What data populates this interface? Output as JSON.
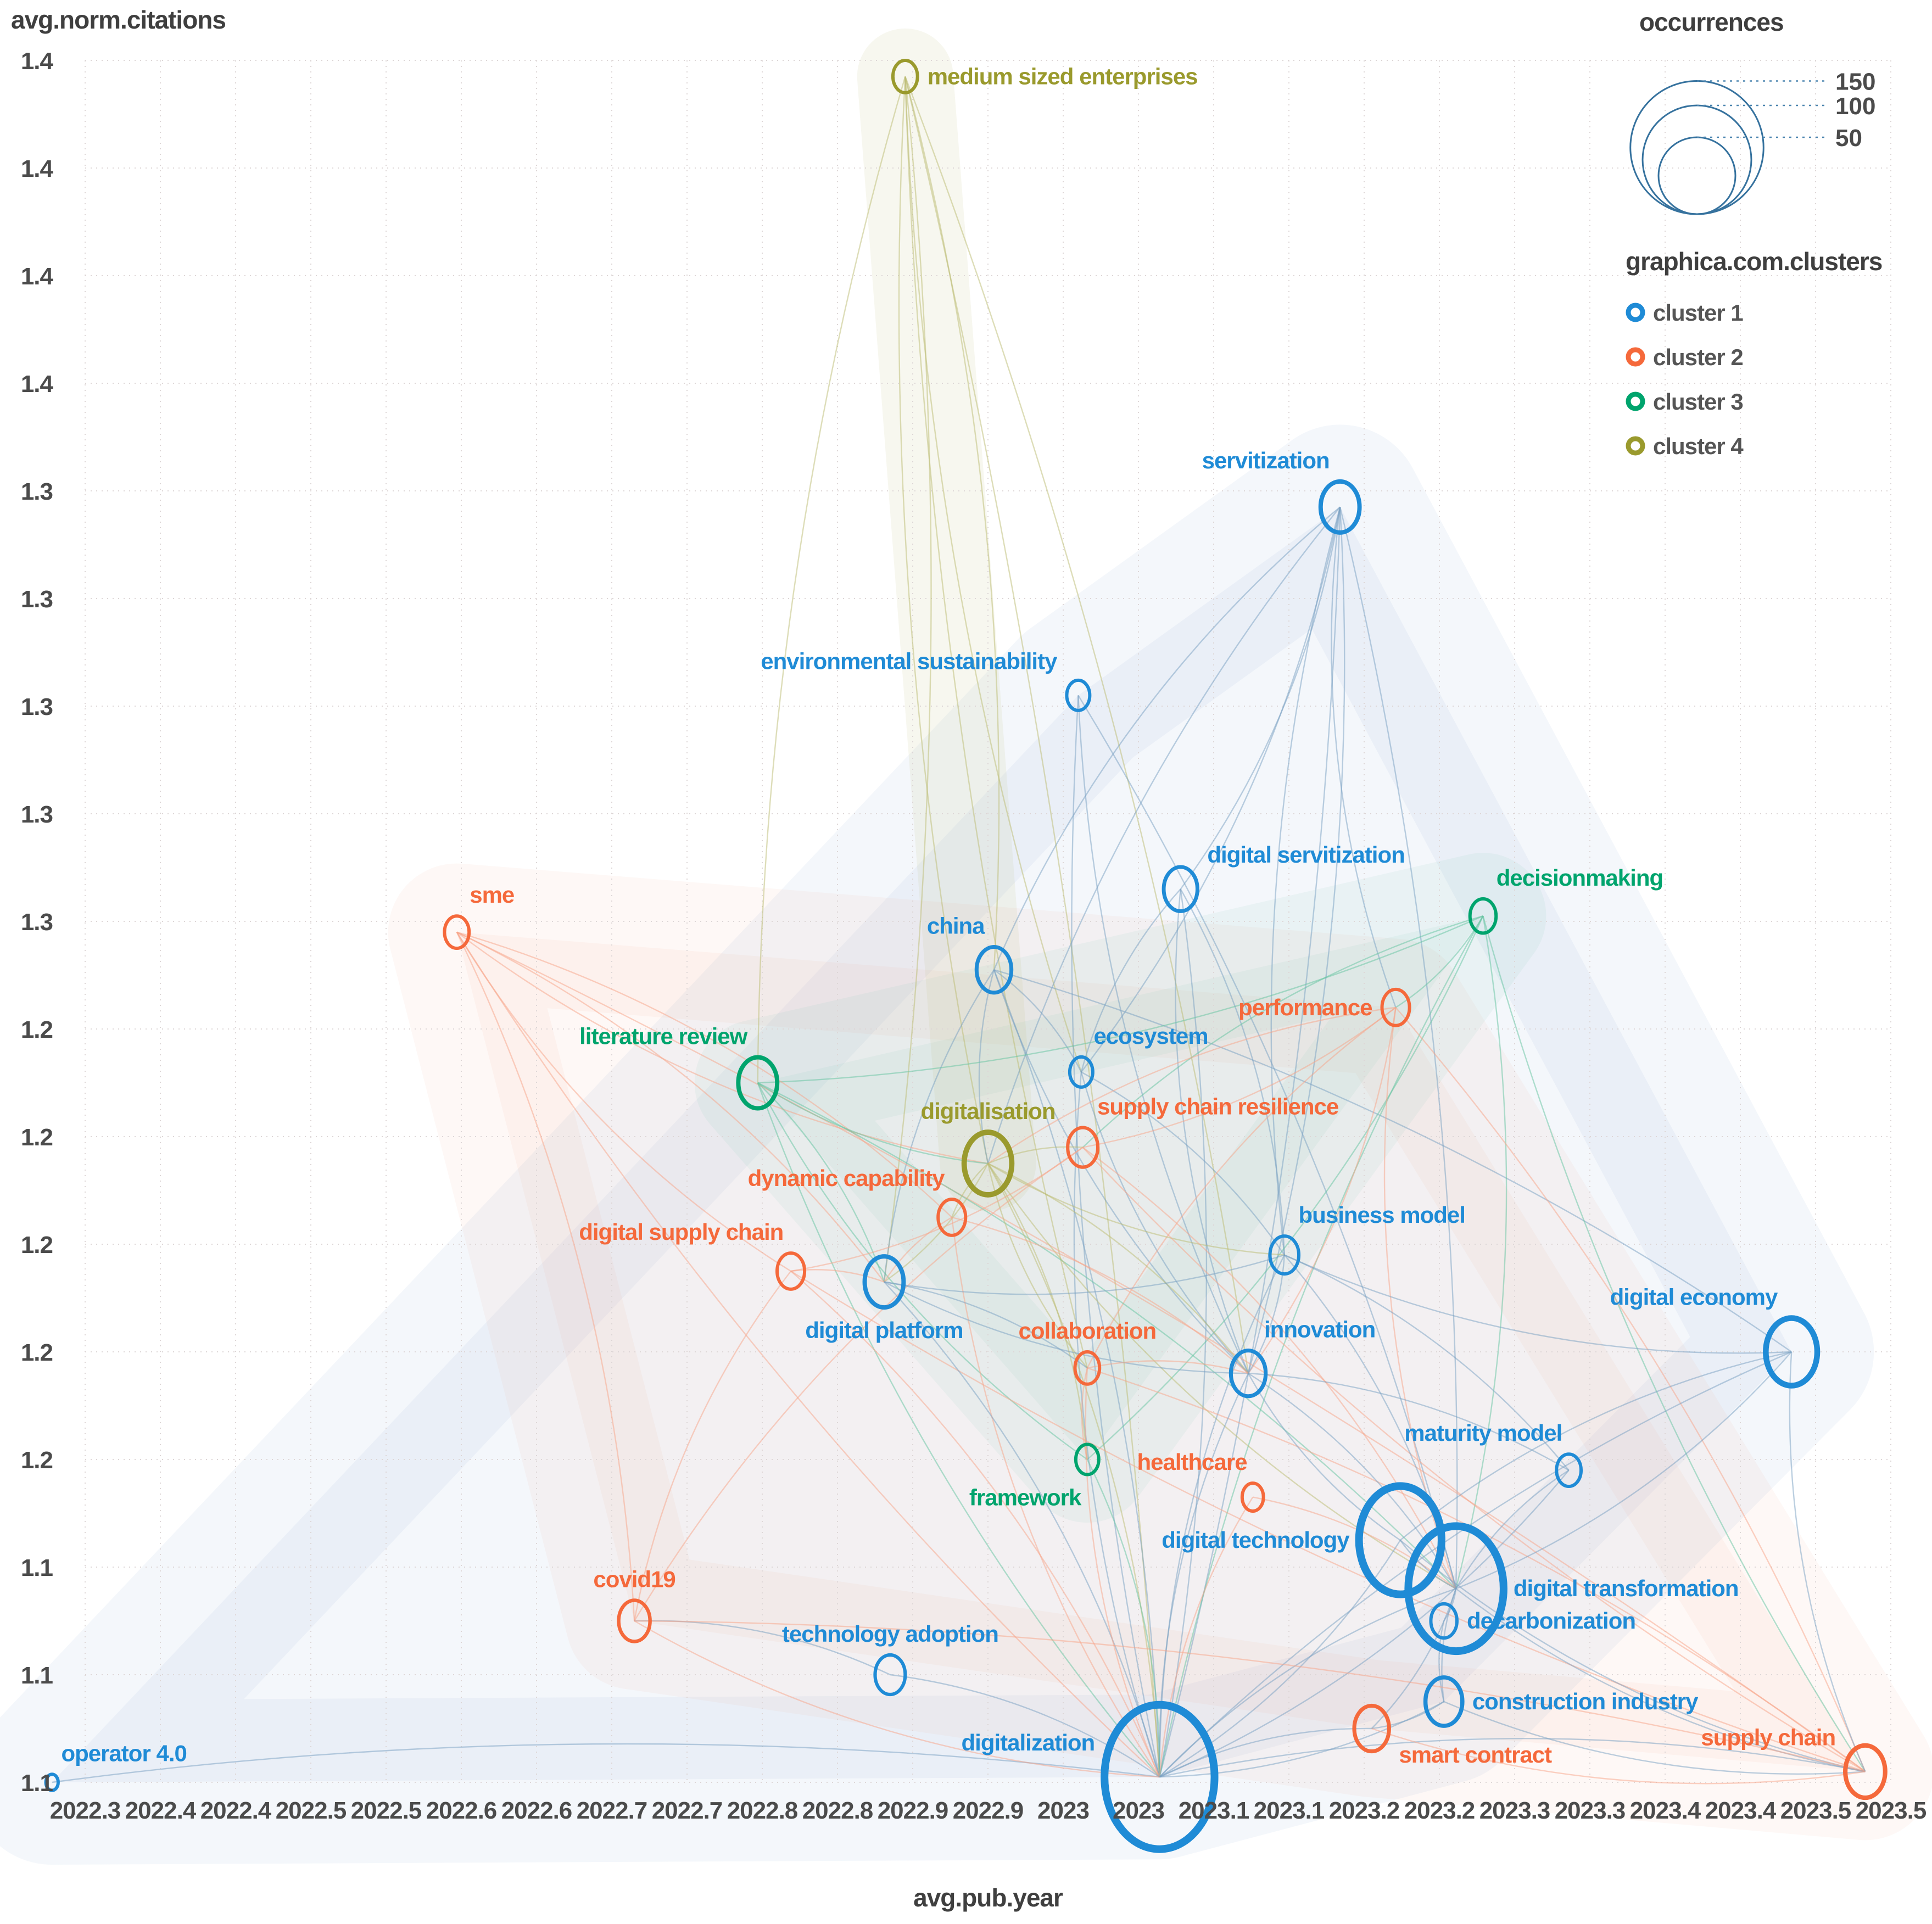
{
  "titles": {
    "y": "avg.norm.citations",
    "x": "avg.pub.year"
  },
  "axes": {
    "x_ticks": [
      "2022.3",
      "2022.4",
      "2022.4",
      "2022.5",
      "2022.5",
      "2022.6",
      "2022.6",
      "2022.7",
      "2022.7",
      "2022.8",
      "2022.8",
      "2022.9",
      "2022.9",
      "2023",
      "2023",
      "2023.1",
      "2023.1",
      "2023.2",
      "2023.2",
      "2023.3",
      "2023.3",
      "2023.4",
      "2023.4",
      "2023.5",
      "2023.5"
    ],
    "y_ticks": [
      "1.4",
      "1.4",
      "1.4",
      "1.4",
      "1.3",
      "1.3",
      "1.3",
      "1.3",
      "1.3",
      "1.2",
      "1.2",
      "1.2",
      "1.2",
      "1.2",
      "1.1",
      "1.1",
      "1.1"
    ]
  },
  "legend_size": {
    "title": "occurrences",
    "values": [
      150,
      100,
      50
    ]
  },
  "legend_clusters": {
    "title": "graphica.com.clusters",
    "items": [
      {
        "label": "cluster 1",
        "color": "#1f8bd6"
      },
      {
        "label": "cluster 2",
        "color": "#f5693b"
      },
      {
        "label": "cluster 3",
        "color": "#00a46d"
      },
      {
        "label": "cluster 4",
        "color": "#9a9a2d"
      }
    ]
  },
  "chart_data": {
    "type": "bubble",
    "xlabel": "avg.pub.year",
    "ylabel": "avg.norm.citations",
    "x_range": [
      2022.3,
      2023.5
    ],
    "y_range": [
      1.1,
      1.42
    ],
    "size_legend": [
      50,
      100,
      150
    ],
    "clusters": {
      "1": {
        "color": "#1f8bd6",
        "edge": "#789fc2",
        "hull": "#7aa7d4"
      },
      "2": {
        "color": "#f5693b",
        "edge": "#f7a488",
        "hull": "#f5987a"
      },
      "3": {
        "color": "#00a46d",
        "edge": "#63c3a0",
        "hull": "#7cc8ad"
      },
      "4": {
        "color": "#9a9a2d",
        "edge": "#bcbb72",
        "hull": "#bcbc78"
      }
    },
    "nodes": [
      {
        "id": "mse",
        "label": "medium sized enterprises",
        "cluster": 4,
        "x": 2022.845,
        "y": 1.417,
        "occ": 8,
        "lp": "right"
      },
      {
        "id": "serv",
        "label": "servitization",
        "cluster": 1,
        "x": 2023.134,
        "y": 1.337,
        "occ": 20,
        "lp": "above-left"
      },
      {
        "id": "envs",
        "label": "environmental sustainability",
        "cluster": 1,
        "x": 2022.96,
        "y": 1.302,
        "occ": 7,
        "lp": "left-up"
      },
      {
        "id": "dserv",
        "label": "digital servitization",
        "cluster": 1,
        "x": 2023.028,
        "y": 1.266,
        "occ": 15,
        "lp": "right-up"
      },
      {
        "id": "china",
        "label": "china",
        "cluster": 1,
        "x": 2022.904,
        "y": 1.251,
        "occ": 16,
        "lp": "above-left"
      },
      {
        "id": "dmk",
        "label": "decisionmaking",
        "cluster": 3,
        "x": 2023.229,
        "y": 1.261,
        "occ": 9,
        "lp": "above-right"
      },
      {
        "id": "eco",
        "label": "ecosystem",
        "cluster": 1,
        "x": 2022.962,
        "y": 1.232,
        "occ": 7,
        "lp": "above-right"
      },
      {
        "id": "perf",
        "label": "performance",
        "cluster": 2,
        "x": 2023.171,
        "y": 1.244,
        "occ": 10,
        "lp": "left"
      },
      {
        "id": "sme",
        "label": "sme",
        "cluster": 2,
        "x": 2022.547,
        "y": 1.258,
        "occ": 8,
        "lp": "above-right"
      },
      {
        "id": "lit",
        "label": "literature review",
        "cluster": 3,
        "x": 2022.747,
        "y": 1.23,
        "occ": 20,
        "lp": "above-left"
      },
      {
        "id": "digsn",
        "label": "digitalisation",
        "cluster": 4,
        "x": 2022.9,
        "y": 1.215,
        "occ": 30,
        "lp": "above"
      },
      {
        "id": "scres",
        "label": "supply chain resilience",
        "cluster": 2,
        "x": 2022.963,
        "y": 1.218,
        "occ": 12,
        "lp": "above-right"
      },
      {
        "id": "dyn",
        "label": "dynamic capability",
        "cluster": 2,
        "x": 2022.876,
        "y": 1.205,
        "occ": 10,
        "lp": "above-left"
      },
      {
        "id": "dsch",
        "label": "digital supply chain",
        "cluster": 2,
        "x": 2022.769,
        "y": 1.195,
        "occ": 10,
        "lp": "above-left"
      },
      {
        "id": "dplat",
        "label": "digital platform",
        "cluster": 1,
        "x": 2022.831,
        "y": 1.193,
        "occ": 20,
        "lp": "below"
      },
      {
        "id": "bmod",
        "label": "business model",
        "cluster": 1,
        "x": 2023.097,
        "y": 1.198,
        "occ": 11,
        "lp": "above-right"
      },
      {
        "id": "coll",
        "label": "collaboration",
        "cluster": 2,
        "x": 2022.966,
        "y": 1.177,
        "occ": 8,
        "lp": "above"
      },
      {
        "id": "innov",
        "label": "innovation",
        "cluster": 1,
        "x": 2023.073,
        "y": 1.176,
        "occ": 16,
        "lp": "above-right"
      },
      {
        "id": "mat",
        "label": "maturity model",
        "cluster": 1,
        "x": 2023.286,
        "y": 1.158,
        "occ": 8,
        "lp": "above-left"
      },
      {
        "id": "deco",
        "label": "digital economy",
        "cluster": 1,
        "x": 2023.434,
        "y": 1.18,
        "occ": 35,
        "lp": "above-left"
      },
      {
        "id": "fw",
        "label": "framework",
        "cluster": 3,
        "x": 2022.966,
        "y": 1.16,
        "occ": 7,
        "lp": "below-left"
      },
      {
        "id": "hc",
        "label": "healthcare",
        "cluster": 2,
        "x": 2023.076,
        "y": 1.153,
        "occ": 6,
        "lp": "above-left"
      },
      {
        "id": "dtech",
        "label": "digital technology",
        "cluster": 1,
        "x": 2023.174,
        "y": 1.145,
        "occ": 90,
        "lp": "left"
      },
      {
        "id": "dtrans",
        "label": "digital transformation",
        "cluster": 1,
        "x": 2023.211,
        "y": 1.136,
        "occ": 120,
        "lp": "right"
      },
      {
        "id": "dcarb",
        "label": "decarbonization",
        "cluster": 1,
        "x": 2023.203,
        "y": 1.13,
        "occ": 9,
        "lp": "right"
      },
      {
        "id": "cons",
        "label": "construction industry",
        "cluster": 1,
        "x": 2023.203,
        "y": 1.115,
        "occ": 18,
        "lp": "right"
      },
      {
        "id": "tad",
        "label": "technology adoption",
        "cluster": 1,
        "x": 2022.835,
        "y": 1.12,
        "occ": 12,
        "lp": "above"
      },
      {
        "id": "dign",
        "label": "digitalization",
        "cluster": 1,
        "x": 2023.014,
        "y": 1.101,
        "occ": 160,
        "lp": "left-up"
      },
      {
        "id": "covid",
        "label": "covid19",
        "cluster": 2,
        "x": 2022.665,
        "y": 1.13,
        "occ": 13,
        "lp": "above"
      },
      {
        "id": "smart",
        "label": "smart contract",
        "cluster": 2,
        "x": 2023.155,
        "y": 1.11,
        "occ": 16,
        "lp": "right-down"
      },
      {
        "id": "op40",
        "label": "operator 4.0",
        "cluster": 1,
        "x": 2022.278,
        "y": 1.1,
        "occ": 2,
        "lp": "above-right"
      },
      {
        "id": "schain",
        "label": "supply chain",
        "cluster": 2,
        "x": 2023.483,
        "y": 1.102,
        "occ": 21,
        "lp": "left-up"
      }
    ],
    "edges": [
      [
        "mse",
        "china"
      ],
      [
        "mse",
        "digsn"
      ],
      [
        "mse",
        "dplat"
      ],
      [
        "mse",
        "eco"
      ],
      [
        "mse",
        "dign"
      ],
      [
        "mse",
        "coll"
      ],
      [
        "mse",
        "innov"
      ],
      [
        "mse",
        "lit"
      ],
      [
        "serv",
        "dserv"
      ],
      [
        "serv",
        "china"
      ],
      [
        "serv",
        "eco"
      ],
      [
        "serv",
        "bmod"
      ],
      [
        "serv",
        "innov"
      ],
      [
        "serv",
        "digsn"
      ],
      [
        "serv",
        "dign"
      ],
      [
        "serv",
        "perf"
      ],
      [
        "serv",
        "dtrans"
      ],
      [
        "envs",
        "dign"
      ],
      [
        "envs",
        "dtrans"
      ],
      [
        "envs",
        "innov"
      ],
      [
        "dserv",
        "bmod"
      ],
      [
        "dserv",
        "innov"
      ],
      [
        "dserv",
        "dign"
      ],
      [
        "dserv",
        "eco"
      ],
      [
        "china",
        "eco"
      ],
      [
        "china",
        "dplat"
      ],
      [
        "china",
        "dign"
      ],
      [
        "china",
        "innov"
      ],
      [
        "china",
        "deco"
      ],
      [
        "china",
        "digsn"
      ],
      [
        "dmk",
        "perf"
      ],
      [
        "dmk",
        "scres"
      ],
      [
        "dmk",
        "fw"
      ],
      [
        "dmk",
        "dign"
      ],
      [
        "dmk",
        "dtrans"
      ],
      [
        "dmk",
        "schain"
      ],
      [
        "dmk",
        "lit"
      ],
      [
        "eco",
        "innov"
      ],
      [
        "eco",
        "bmod"
      ],
      [
        "eco",
        "dign"
      ],
      [
        "perf",
        "scres"
      ],
      [
        "perf",
        "digsn"
      ],
      [
        "perf",
        "innov"
      ],
      [
        "perf",
        "dtrans"
      ],
      [
        "perf",
        "schain"
      ],
      [
        "perf",
        "coll"
      ],
      [
        "sme",
        "covid"
      ],
      [
        "sme",
        "dsch"
      ],
      [
        "sme",
        "dplat"
      ],
      [
        "sme",
        "digsn"
      ],
      [
        "sme",
        "dyn"
      ],
      [
        "sme",
        "dign"
      ],
      [
        "sme",
        "schain"
      ],
      [
        "lit",
        "digsn"
      ],
      [
        "lit",
        "dplat"
      ],
      [
        "lit",
        "fw"
      ],
      [
        "lit",
        "dtrans"
      ],
      [
        "lit",
        "dign"
      ],
      [
        "digsn",
        "dplat"
      ],
      [
        "digsn",
        "dyn"
      ],
      [
        "digsn",
        "scres"
      ],
      [
        "digsn",
        "coll"
      ],
      [
        "digsn",
        "innov"
      ],
      [
        "digsn",
        "bmod"
      ],
      [
        "digsn",
        "dign"
      ],
      [
        "digsn",
        "dtrans"
      ],
      [
        "digsn",
        "fw"
      ],
      [
        "scres",
        "schain"
      ],
      [
        "scres",
        "dsch"
      ],
      [
        "scres",
        "covid"
      ],
      [
        "scres",
        "dtrans"
      ],
      [
        "dyn",
        "dplat"
      ],
      [
        "dyn",
        "innov"
      ],
      [
        "dyn",
        "dign"
      ],
      [
        "dsch",
        "dplat"
      ],
      [
        "dsch",
        "covid"
      ],
      [
        "dsch",
        "dign"
      ],
      [
        "dsch",
        "schain"
      ],
      [
        "dplat",
        "coll"
      ],
      [
        "dplat",
        "innov"
      ],
      [
        "dplat",
        "dign"
      ],
      [
        "dplat",
        "bmod"
      ],
      [
        "bmod",
        "innov"
      ],
      [
        "bmod",
        "dign"
      ],
      [
        "bmod",
        "dtrans"
      ],
      [
        "bmod",
        "deco"
      ],
      [
        "bmod",
        "mat"
      ],
      [
        "coll",
        "fw"
      ],
      [
        "coll",
        "innov"
      ],
      [
        "coll",
        "dign"
      ],
      [
        "coll",
        "schain"
      ],
      [
        "innov",
        "dign"
      ],
      [
        "innov",
        "dtrans"
      ],
      [
        "innov",
        "dtech"
      ],
      [
        "innov",
        "mat"
      ],
      [
        "mat",
        "dtrans"
      ],
      [
        "deco",
        "dtrans"
      ],
      [
        "deco",
        "schain"
      ],
      [
        "fw",
        "dign"
      ],
      [
        "hc",
        "dign"
      ],
      [
        "hc",
        "dtrans"
      ],
      [
        "dtech",
        "dtrans"
      ],
      [
        "dtech",
        "deco"
      ],
      [
        "dtech",
        "schain"
      ],
      [
        "dtech",
        "dign"
      ],
      [
        "dtrans",
        "schain"
      ],
      [
        "dtrans",
        "smart"
      ],
      [
        "dtrans",
        "cons"
      ],
      [
        "dtrans",
        "dcarb"
      ],
      [
        "dcarb",
        "cons"
      ],
      [
        "cons",
        "smart"
      ],
      [
        "cons",
        "schain"
      ],
      [
        "tad",
        "dign"
      ],
      [
        "tad",
        "covid"
      ],
      [
        "dign",
        "smart"
      ],
      [
        "dign",
        "cons"
      ],
      [
        "dign",
        "schain"
      ],
      [
        "dign",
        "op40"
      ],
      [
        "dign",
        "deco"
      ],
      [
        "dign",
        "mat"
      ],
      [
        "dign",
        "dtrans"
      ],
      [
        "covid",
        "dign"
      ],
      [
        "covid",
        "schain"
      ],
      [
        "smart",
        "schain"
      ]
    ]
  }
}
